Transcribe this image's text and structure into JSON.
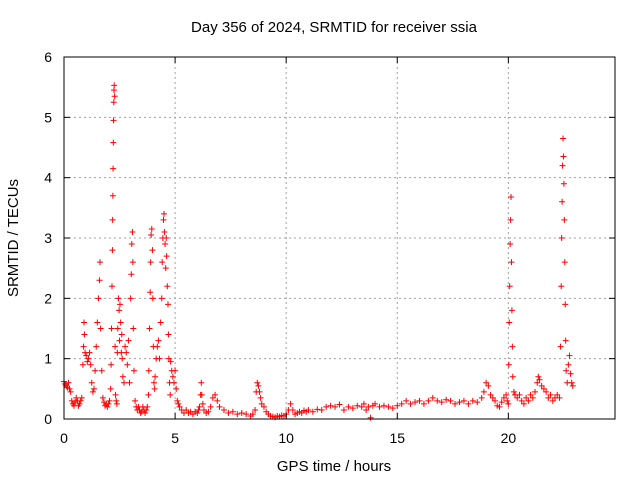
{
  "chart_data": {
    "type": "scatter",
    "title": "Day 356 of 2024, SRMTID for receiver ssia",
    "xlabel": "GPS time / hours",
    "ylabel": "SRMTID / TECUs",
    "xlim": [
      0,
      24.8
    ],
    "ylim": [
      0,
      6
    ],
    "xticks": [
      0,
      5,
      10,
      15,
      20
    ],
    "xtick_labels": [
      "0",
      "5",
      "10",
      "15",
      "20"
    ],
    "yticks": [
      0,
      1,
      2,
      3,
      4,
      5,
      6
    ],
    "ytick_labels": [
      "0",
      "1",
      "2",
      "3",
      "4",
      "5",
      "6"
    ],
    "grid": true,
    "marker": "+",
    "color": "#ff0000",
    "series": [
      {
        "name": "SRMTID",
        "points": [
          [
            0.0,
            0.62
          ],
          [
            0.05,
            0.58
          ],
          [
            0.1,
            0.55
          ],
          [
            0.15,
            0.52
          ],
          [
            0.2,
            0.6
          ],
          [
            0.25,
            0.5
          ],
          [
            0.3,
            0.45
          ],
          [
            0.35,
            0.3
          ],
          [
            0.4,
            0.25
          ],
          [
            0.45,
            0.22
          ],
          [
            0.5,
            0.28
          ],
          [
            0.55,
            0.35
          ],
          [
            0.6,
            0.3
          ],
          [
            0.65,
            0.22
          ],
          [
            0.7,
            0.25
          ],
          [
            0.75,
            0.3
          ],
          [
            0.8,
            0.35
          ],
          [
            0.85,
            0.9
          ],
          [
            0.88,
            1.2
          ],
          [
            0.9,
            1.6
          ],
          [
            0.92,
            1.4
          ],
          [
            0.95,
            1.1
          ],
          [
            1.0,
            1.05
          ],
          [
            1.05,
            0.95
          ],
          [
            1.1,
            1.0
          ],
          [
            1.15,
            1.1
          ],
          [
            1.2,
            0.9
          ],
          [
            1.25,
            0.6
          ],
          [
            1.3,
            0.45
          ],
          [
            1.35,
            0.5
          ],
          [
            1.4,
            0.8
          ],
          [
            1.45,
            1.2
          ],
          [
            1.5,
            1.6
          ],
          [
            1.55,
            2.0
          ],
          [
            1.6,
            2.3
          ],
          [
            1.62,
            2.6
          ],
          [
            1.65,
            1.5
          ],
          [
            1.7,
            0.8
          ],
          [
            1.75,
            0.35
          ],
          [
            1.8,
            0.28
          ],
          [
            1.85,
            0.22
          ],
          [
            1.9,
            0.25
          ],
          [
            1.95,
            0.2
          ],
          [
            2.0,
            0.25
          ],
          [
            2.05,
            0.3
          ],
          [
            2.1,
            0.5
          ],
          [
            2.12,
            0.9
          ],
          [
            2.14,
            1.5
          ],
          [
            2.16,
            2.2
          ],
          [
            2.18,
            2.8
          ],
          [
            2.19,
            3.3
          ],
          [
            2.2,
            3.7
          ],
          [
            2.21,
            4.15
          ],
          [
            2.22,
            4.58
          ],
          [
            2.23,
            4.95
          ],
          [
            2.24,
            5.25
          ],
          [
            2.25,
            5.45
          ],
          [
            2.26,
            5.53
          ],
          [
            2.28,
            5.35
          ],
          [
            2.3,
            1.2
          ],
          [
            2.32,
            0.4
          ],
          [
            2.35,
            0.3
          ],
          [
            2.38,
            0.25
          ],
          [
            2.4,
            1.1
          ],
          [
            2.42,
            1.5
          ],
          [
            2.45,
            2.0
          ],
          [
            2.48,
            1.8
          ],
          [
            2.5,
            1.3
          ],
          [
            2.52,
            1.9
          ],
          [
            2.55,
            1.6
          ],
          [
            2.58,
            1.1
          ],
          [
            2.6,
            1.4
          ],
          [
            2.62,
            1.0
          ],
          [
            2.65,
            0.7
          ],
          [
            2.7,
            0.6
          ],
          [
            2.75,
            1.2
          ],
          [
            2.8,
            1.1
          ],
          [
            2.85,
            0.9
          ],
          [
            2.9,
            1.3
          ],
          [
            2.95,
            0.6
          ],
          [
            3.0,
            2.0
          ],
          [
            3.03,
            2.4
          ],
          [
            3.05,
            2.9
          ],
          [
            3.08,
            3.1
          ],
          [
            3.1,
            2.6
          ],
          [
            3.12,
            1.5
          ],
          [
            3.15,
            0.8
          ],
          [
            3.2,
            0.3
          ],
          [
            3.25,
            0.2
          ],
          [
            3.3,
            0.15
          ],
          [
            3.35,
            0.2
          ],
          [
            3.4,
            0.15
          ],
          [
            3.45,
            0.1
          ],
          [
            3.5,
            0.12
          ],
          [
            3.55,
            0.2
          ],
          [
            3.6,
            0.15
          ],
          [
            3.65,
            0.1
          ],
          [
            3.7,
            0.15
          ],
          [
            3.75,
            0.2
          ],
          [
            3.8,
            0.4
          ],
          [
            3.82,
            0.8
          ],
          [
            3.85,
            1.5
          ],
          [
            3.88,
            2.1
          ],
          [
            3.9,
            2.6
          ],
          [
            3.92,
            3.05
          ],
          [
            3.95,
            3.15
          ],
          [
            3.98,
            2.8
          ],
          [
            4.0,
            2.0
          ],
          [
            4.02,
            1.2
          ],
          [
            4.05,
            0.6
          ],
          [
            4.08,
            0.5
          ],
          [
            4.1,
            0.7
          ],
          [
            4.15,
            1.0
          ],
          [
            4.2,
            1.2
          ],
          [
            4.25,
            1.3
          ],
          [
            4.3,
            1.0
          ],
          [
            4.35,
            1.6
          ],
          [
            4.4,
            2.0
          ],
          [
            4.42,
            2.6
          ],
          [
            4.45,
            3.0
          ],
          [
            4.48,
            3.3
          ],
          [
            4.5,
            3.4
          ],
          [
            4.52,
            3.1
          ],
          [
            4.55,
            2.9
          ],
          [
            4.58,
            2.5
          ],
          [
            4.6,
            3.0
          ],
          [
            4.62,
            2.7
          ],
          [
            4.65,
            2.2
          ],
          [
            4.68,
            1.9
          ],
          [
            4.7,
            1.4
          ],
          [
            4.72,
            1.0
          ],
          [
            4.75,
            0.6
          ],
          [
            4.78,
            0.4
          ],
          [
            4.8,
            0.95
          ],
          [
            4.85,
            0.8
          ],
          [
            4.9,
            0.7
          ],
          [
            4.95,
            0.6
          ],
          [
            5.0,
            0.8
          ],
          [
            5.05,
            0.5
          ],
          [
            5.1,
            0.3
          ],
          [
            5.15,
            0.25
          ],
          [
            5.2,
            0.2
          ],
          [
            5.3,
            0.15
          ],
          [
            5.4,
            0.1
          ],
          [
            5.5,
            0.15
          ],
          [
            5.6,
            0.1
          ],
          [
            5.7,
            0.12
          ],
          [
            5.8,
            0.08
          ],
          [
            5.9,
            0.12
          ],
          [
            6.0,
            0.1
          ],
          [
            6.05,
            0.15
          ],
          [
            6.1,
            0.2
          ],
          [
            6.15,
            0.4
          ],
          [
            6.18,
            0.6
          ],
          [
            6.2,
            0.4
          ],
          [
            6.25,
            0.25
          ],
          [
            6.3,
            0.15
          ],
          [
            6.4,
            0.1
          ],
          [
            6.5,
            0.12
          ],
          [
            6.6,
            0.2
          ],
          [
            6.7,
            0.35
          ],
          [
            6.8,
            0.4
          ],
          [
            6.9,
            0.3
          ],
          [
            7.0,
            0.2
          ],
          [
            7.2,
            0.15
          ],
          [
            7.4,
            0.1
          ],
          [
            7.6,
            0.12
          ],
          [
            7.8,
            0.08
          ],
          [
            8.0,
            0.1
          ],
          [
            8.2,
            0.08
          ],
          [
            8.4,
            0.05
          ],
          [
            8.5,
            0.08
          ],
          [
            8.6,
            0.15
          ],
          [
            8.65,
            0.45
          ],
          [
            8.7,
            0.6
          ],
          [
            8.75,
            0.55
          ],
          [
            8.8,
            0.45
          ],
          [
            8.85,
            0.35
          ],
          [
            8.9,
            0.25
          ],
          [
            9.0,
            0.2
          ],
          [
            9.1,
            0.12
          ],
          [
            9.2,
            0.08
          ],
          [
            9.3,
            0.05
          ],
          [
            9.4,
            0.04
          ],
          [
            9.5,
            0.03
          ],
          [
            9.6,
            0.05
          ],
          [
            9.7,
            0.04
          ],
          [
            9.8,
            0.06
          ],
          [
            9.9,
            0.05
          ],
          [
            10.0,
            0.08
          ],
          [
            10.1,
            0.15
          ],
          [
            10.2,
            0.25
          ],
          [
            10.3,
            0.15
          ],
          [
            10.4,
            0.08
          ],
          [
            10.5,
            0.1
          ],
          [
            10.6,
            0.12
          ],
          [
            10.7,
            0.1
          ],
          [
            10.8,
            0.14
          ],
          [
            10.9,
            0.12
          ],
          [
            11.0,
            0.15
          ],
          [
            11.2,
            0.12
          ],
          [
            11.4,
            0.16
          ],
          [
            11.6,
            0.15
          ],
          [
            11.8,
            0.2
          ],
          [
            12.0,
            0.22
          ],
          [
            12.2,
            0.2
          ],
          [
            12.4,
            0.24
          ],
          [
            12.6,
            0.15
          ],
          [
            12.8,
            0.2
          ],
          [
            13.0,
            0.18
          ],
          [
            13.2,
            0.22
          ],
          [
            13.4,
            0.2
          ],
          [
            13.5,
            0.25
          ],
          [
            13.6,
            0.15
          ],
          [
            13.7,
            0.2
          ],
          [
            13.8,
            0.02
          ],
          [
            13.9,
            0.22
          ],
          [
            14.0,
            0.25
          ],
          [
            14.2,
            0.2
          ],
          [
            14.4,
            0.22
          ],
          [
            14.6,
            0.2
          ],
          [
            14.8,
            0.18
          ],
          [
            15.0,
            0.22
          ],
          [
            15.2,
            0.25
          ],
          [
            15.4,
            0.3
          ],
          [
            15.6,
            0.25
          ],
          [
            15.8,
            0.28
          ],
          [
            16.0,
            0.3
          ],
          [
            16.2,
            0.25
          ],
          [
            16.4,
            0.3
          ],
          [
            16.6,
            0.35
          ],
          [
            16.8,
            0.3
          ],
          [
            17.0,
            0.28
          ],
          [
            17.2,
            0.32
          ],
          [
            17.4,
            0.3
          ],
          [
            17.6,
            0.25
          ],
          [
            17.8,
            0.28
          ],
          [
            18.0,
            0.3
          ],
          [
            18.2,
            0.25
          ],
          [
            18.4,
            0.3
          ],
          [
            18.6,
            0.28
          ],
          [
            18.8,
            0.35
          ],
          [
            18.9,
            0.45
          ],
          [
            19.0,
            0.6
          ],
          [
            19.1,
            0.55
          ],
          [
            19.2,
            0.4
          ],
          [
            19.3,
            0.35
          ],
          [
            19.4,
            0.3
          ],
          [
            19.5,
            0.22
          ],
          [
            19.6,
            0.2
          ],
          [
            19.7,
            0.28
          ],
          [
            19.8,
            0.35
          ],
          [
            19.9,
            0.4
          ],
          [
            19.95,
            0.3
          ],
          [
            20.0,
            0.25
          ],
          [
            20.02,
            0.9
          ],
          [
            20.04,
            1.6
          ],
          [
            20.06,
            2.2
          ],
          [
            20.08,
            2.9
          ],
          [
            20.1,
            3.3
          ],
          [
            20.12,
            3.68
          ],
          [
            20.14,
            2.6
          ],
          [
            20.16,
            1.8
          ],
          [
            20.18,
            1.2
          ],
          [
            20.2,
            0.7
          ],
          [
            20.25,
            0.45
          ],
          [
            20.3,
            0.4
          ],
          [
            20.4,
            0.35
          ],
          [
            20.5,
            0.4
          ],
          [
            20.6,
            0.3
          ],
          [
            20.7,
            0.25
          ],
          [
            20.8,
            0.35
          ],
          [
            20.9,
            0.3
          ],
          [
            21.0,
            0.4
          ],
          [
            21.1,
            0.35
          ],
          [
            21.2,
            0.45
          ],
          [
            21.3,
            0.6
          ],
          [
            21.35,
            0.7
          ],
          [
            21.4,
            0.65
          ],
          [
            21.5,
            0.55
          ],
          [
            21.6,
            0.5
          ],
          [
            21.7,
            0.45
          ],
          [
            21.8,
            0.35
          ],
          [
            21.9,
            0.4
          ],
          [
            22.0,
            0.3
          ],
          [
            22.1,
            0.35
          ],
          [
            22.2,
            0.4
          ],
          [
            22.3,
            0.35
          ],
          [
            22.35,
            1.2
          ],
          [
            22.38,
            2.2
          ],
          [
            22.4,
            3.0
          ],
          [
            22.42,
            3.6
          ],
          [
            22.44,
            4.2
          ],
          [
            22.46,
            4.65
          ],
          [
            22.48,
            4.35
          ],
          [
            22.5,
            3.9
          ],
          [
            22.52,
            3.3
          ],
          [
            22.54,
            2.6
          ],
          [
            22.56,
            1.9
          ],
          [
            22.58,
            1.3
          ],
          [
            22.6,
            0.8
          ],
          [
            22.65,
            0.6
          ],
          [
            22.7,
            0.9
          ],
          [
            22.75,
            1.05
          ],
          [
            22.8,
            0.75
          ],
          [
            22.85,
            0.6
          ],
          [
            22.9,
            0.55
          ]
        ]
      }
    ]
  }
}
